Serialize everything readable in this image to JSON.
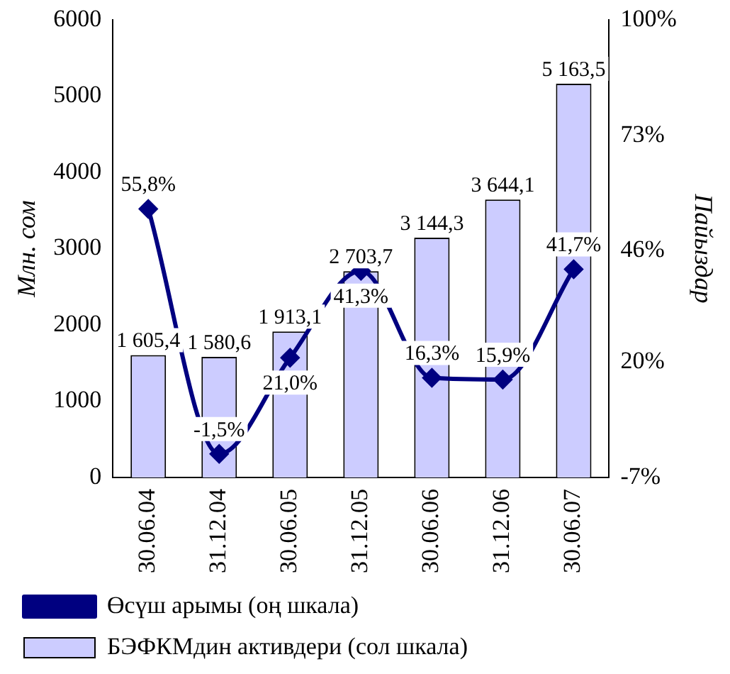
{
  "chart_data": {
    "type": "bar",
    "ylabel": "Млн. сом",
    "y2label": "Пайыздар",
    "categories": [
      "30.06.04",
      "31.12.04",
      "30.06.05",
      "31.12.05",
      "30.06.06",
      "31.12.06",
      "30.06.07"
    ],
    "series": [
      {
        "name": "БЭФКМдин активдери (сол шкала)",
        "color": "#ccccff",
        "values": [
          1605.4,
          1580.6,
          1913.1,
          2703.7,
          3144.3,
          3644.1,
          5163.5
        ],
        "value_labels": [
          "1 605,4",
          "1 580,6",
          "1 913,1",
          "2 703,7",
          "3 144,3",
          "3 644,1",
          "5 163,5"
        ]
      },
      {
        "name": "Өсүш арымы (оң шкала)",
        "type": "line",
        "axis": "y2",
        "color": "#000080",
        "values": [
          55.8,
          -1.5,
          21.0,
          41.3,
          16.3,
          15.9,
          41.7
        ],
        "value_labels": [
          "55,8%",
          "-1,5%",
          "21,0%",
          "41,3%",
          "16,3%",
          "15,9%",
          "41,7%"
        ]
      }
    ],
    "ylim": [
      0,
      6000
    ],
    "yticks": [
      0,
      1000,
      2000,
      3000,
      4000,
      5000,
      6000
    ],
    "y2lim": [
      -7,
      100
    ],
    "y2ticks": [
      {
        "value": -7,
        "label": "-7%"
      },
      {
        "value": 20,
        "label": "20%"
      },
      {
        "value": 46,
        "label": "46%"
      },
      {
        "value": 73,
        "label": "73%"
      },
      {
        "value": 100,
        "label": "100%"
      }
    ],
    "marker": "diamond",
    "legend": "bottom",
    "grid": false
  }
}
